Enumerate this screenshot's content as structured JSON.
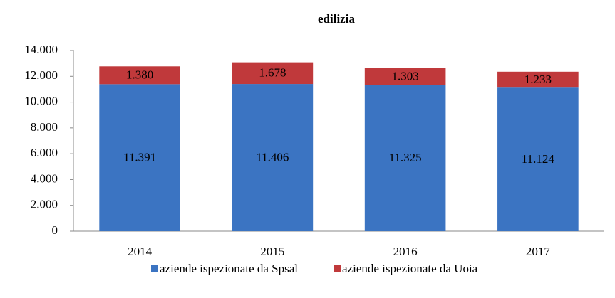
{
  "chart_data": {
    "type": "stacked_bar",
    "title": "edilizia",
    "categories": [
      "2014",
      "2015",
      "2016",
      "2017"
    ],
    "series": [
      {
        "name": "aziende ispezionate da Spsal",
        "color": "#3b74c2",
        "values": [
          11391,
          11406,
          11325,
          11124
        ],
        "value_labels": [
          "11.391",
          "11.406",
          "11.325",
          "11.124"
        ]
      },
      {
        "name": "aziende ispezionate da Uoia",
        "color": "#c0393b",
        "values": [
          1380,
          1678,
          1303,
          1233
        ],
        "value_labels": [
          "1.380",
          "1.678",
          "1.303",
          "1.233"
        ]
      }
    ],
    "ylim": [
      0,
      14000
    ],
    "yticks": [
      0,
      {
        "value": 2000,
        "label": "2.000"
      },
      {
        "value": 4000,
        "label": "4.000"
      },
      {
        "value": 6000,
        "label": "6.000"
      },
      {
        "value": 8000,
        "label": "8.000"
      },
      {
        "value": 10000,
        "label": "10.000"
      },
      {
        "value": 12000,
        "label": "12.000"
      },
      {
        "value": 14000,
        "label": "14.000"
      }
    ],
    "grid": false,
    "legend": "bottom"
  }
}
